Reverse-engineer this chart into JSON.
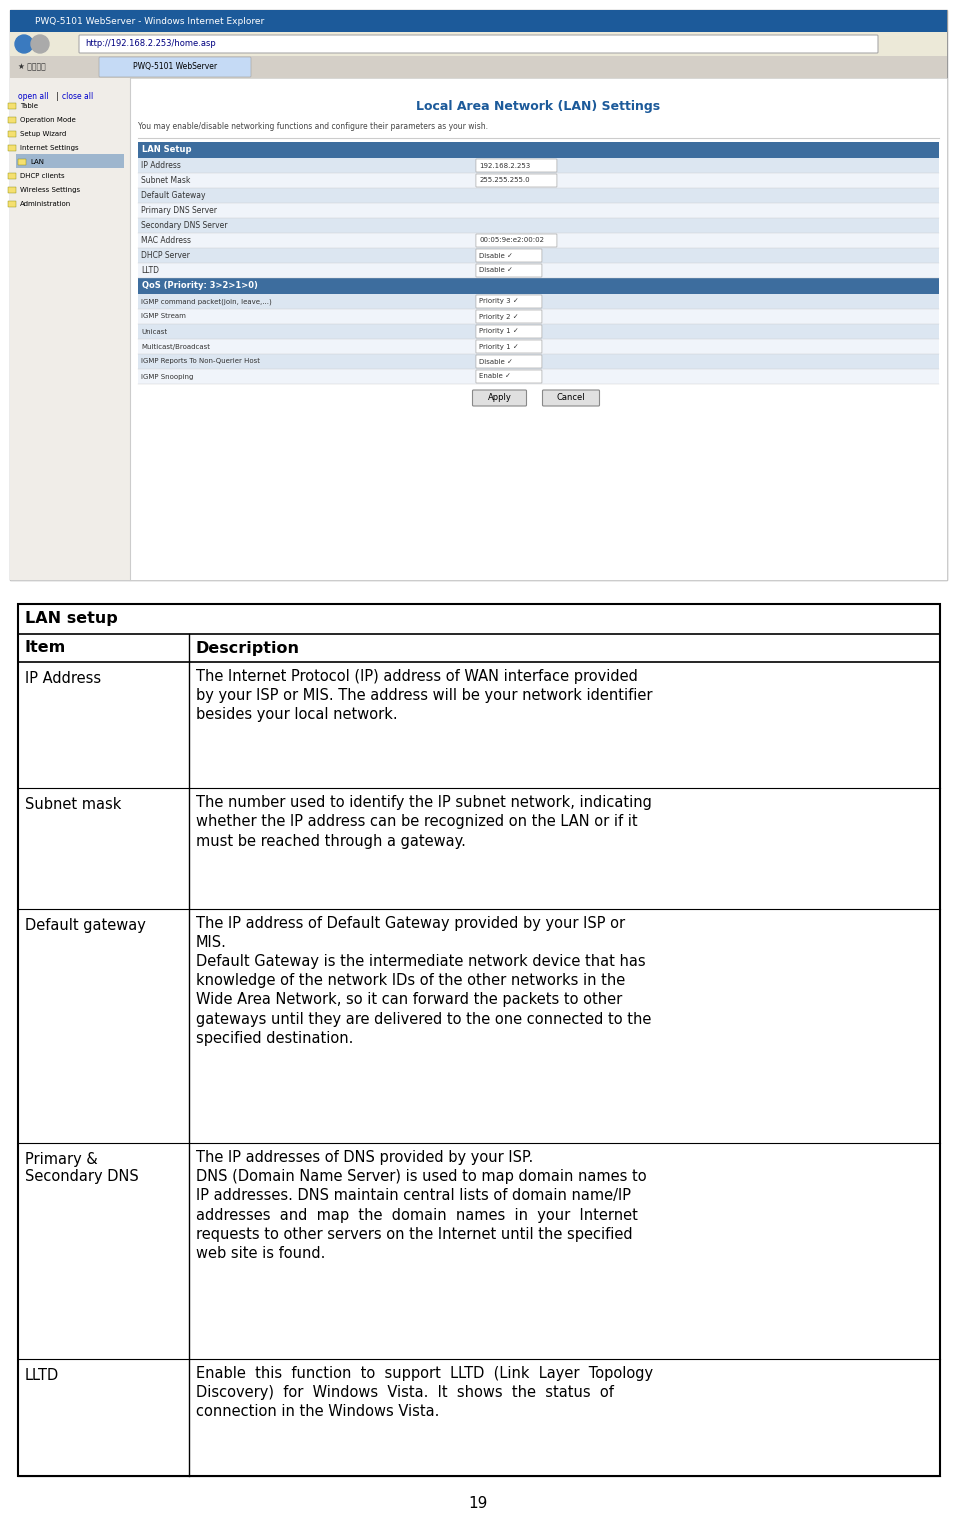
{
  "page_number": "19",
  "table_title": "LAN setup",
  "col1_header": "Item",
  "col2_header": "Description",
  "rows": [
    {
      "item": "IP Address",
      "description": "The Internet Protocol (IP) address of WAN interface provided\nby your ISP or MIS. The address will be your network identifier\nbesides your local network."
    },
    {
      "item": "Subnet mask",
      "description": "The number used to identify the IP subnet network, indicating\nwhether the IP address can be recognized on the LAN or if it\nmust be reached through a gateway."
    },
    {
      "item": "Default gateway",
      "description": "The IP address of Default Gateway provided by your ISP or\nMIS.\nDefault Gateway is the intermediate network device that has\nknowledge of the network IDs of the other networks in the\nWide Area Network, so it can forward the packets to other\ngateways until they are delivered to the one connected to the\nspecified destination."
    },
    {
      "item": "Primary &\nSecondary DNS",
      "description": "The IP addresses of DNS provided by your ISP.\nDNS (Domain Name Server) is used to map domain names to\nIP addresses. DNS maintain central lists of domain name/IP\naddresses  and  map  the  domain  names  in  your  Internet\nrequests to other servers on the Internet until the specified\nweb site is found."
    },
    {
      "item": "LLTD",
      "description": "Enable  this  function  to  support  LLTD  (Link  Layer  Topology\nDiscovery)  for  Windows  Vista.  It  shows  the  status  of\nconnection in the Windows Vista."
    }
  ],
  "bg_color": "#ffffff",
  "browser_rows": [
    [
      "IP Address",
      "192.168.2.253",
      "text"
    ],
    [
      "Subnet Mask",
      "255.255.255.0",
      "text"
    ],
    [
      "Default Gateway",
      "",
      "text"
    ],
    [
      "Primary DNS Server",
      "",
      "text"
    ],
    [
      "Secondary DNS Server",
      "",
      "text"
    ],
    [
      "MAC Address",
      "00:05:9e:e2:00:02",
      "text"
    ],
    [
      "DHCP Server",
      "Disable",
      "dropdown"
    ],
    [
      "LLTD",
      "Disable",
      "dropdown"
    ]
  ],
  "qos_rows": [
    [
      "IGMP command packet(join, leave,...)",
      "Priority 3",
      "dropdown"
    ],
    [
      "IGMP Stream",
      "Priority 2",
      "dropdown"
    ],
    [
      "Unicast",
      "Priority 1",
      "dropdown"
    ],
    [
      "Multicast/Broadcast",
      "Priority 1",
      "dropdown"
    ],
    [
      "IGMP Reports To Non-Querier Host",
      "Disable",
      "dropdown"
    ],
    [
      "IGMP Snooping",
      "Enable",
      "dropdown"
    ]
  ],
  "sidebar_items": [
    [
      "Table",
      false,
      false
    ],
    [
      "Operation Mode",
      false,
      false
    ],
    [
      "Setup Wizard",
      false,
      false
    ],
    [
      "Internet Settings",
      false,
      false
    ],
    [
      "LAN",
      true,
      true
    ],
    [
      "DHCP clients",
      false,
      false
    ],
    [
      "Wireless Settings",
      false,
      false
    ],
    [
      "Administration",
      false,
      false
    ]
  ],
  "browser_title": "PWQ-5101 WebServer - Windows Internet Explorer",
  "browser_url": "http://192.168.2.253/home.asp",
  "browser_tab": "PWQ-5101 WebServer",
  "page_title": "Local Area Network (LAN) Settings",
  "page_subtitle": "You may enable/disable networking functions and configure their parameters as your wish.",
  "lan_setup_label": "LAN Setup",
  "qos_label": "QoS (Priority: 3>2>1>0)",
  "title_bar_color": "#1c5a9a",
  "sidebar_bg": "#f0ede8",
  "table_header_color": "#3d6d9e",
  "row_alt1": "#dce6f1",
  "row_alt2": "#f0f4fa",
  "row_white": "#ffffff"
}
